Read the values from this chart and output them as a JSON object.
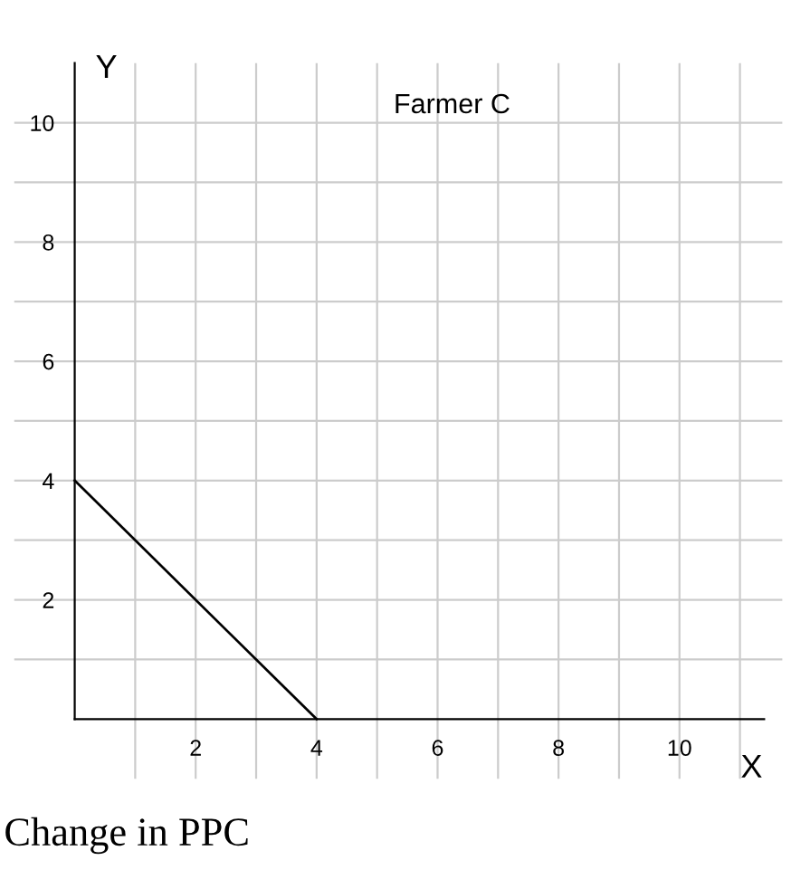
{
  "chart_data": {
    "type": "line",
    "title": "Farmer C",
    "xlabel": "X",
    "ylabel": "Y",
    "annotations": [
      "Change in PPC"
    ],
    "x": [
      0,
      4
    ],
    "series": [
      {
        "color": "#000000",
        "values": [
          4,
          0
        ]
      }
    ],
    "xlim": [
      -1,
      11.7
    ],
    "ylim": [
      -1,
      11
    ],
    "xticks": [
      {
        "value": 1,
        "label": null
      },
      2,
      {
        "value": 3,
        "label": null
      },
      4,
      {
        "value": 5,
        "label": null
      },
      6,
      {
        "value": 7,
        "label": null
      },
      8,
      {
        "value": 9,
        "label": null
      },
      10,
      {
        "value": 11,
        "label": null
      }
    ],
    "yticks": [
      {
        "value": 1,
        "label": null
      },
      2,
      {
        "value": 3,
        "label": null
      },
      4,
      {
        "value": 5,
        "label": null
      },
      6,
      {
        "value": 7,
        "label": null
      },
      8,
      {
        "value": 9,
        "label": null
      },
      10
    ],
    "grid": true,
    "marker": "none",
    "line_style": "solid"
  }
}
